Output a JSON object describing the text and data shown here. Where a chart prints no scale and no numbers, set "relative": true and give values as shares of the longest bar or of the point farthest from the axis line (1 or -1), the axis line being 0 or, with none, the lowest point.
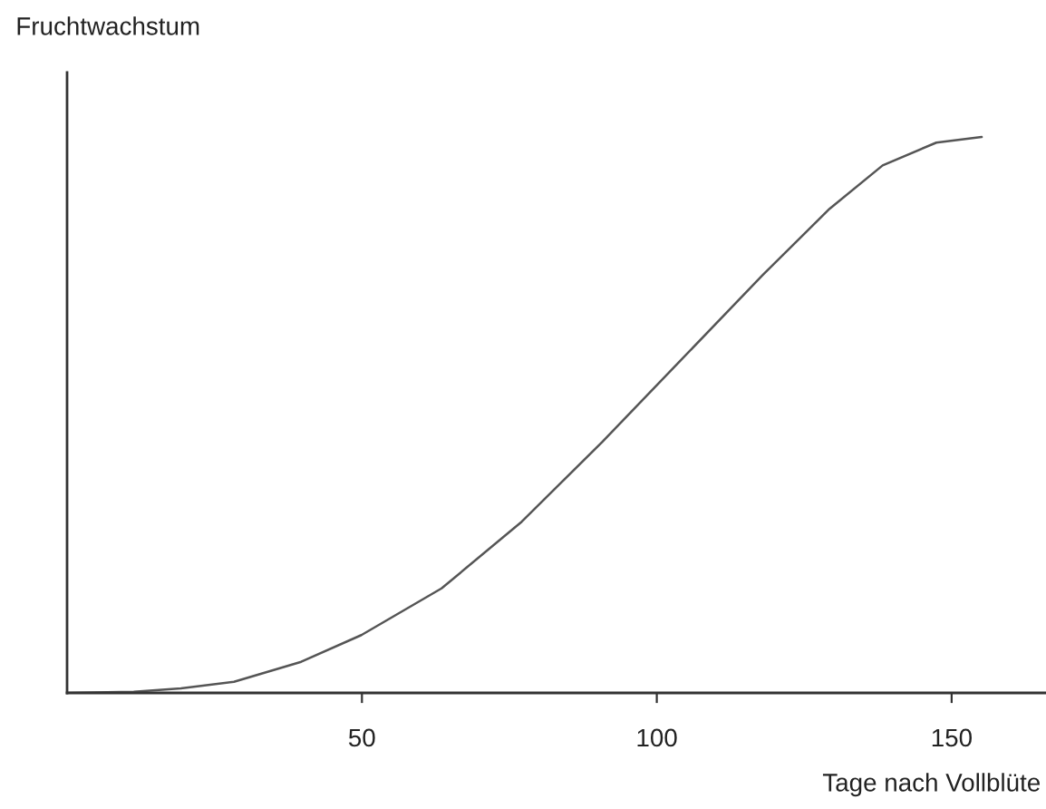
{
  "chart_data": {
    "type": "line",
    "relative": true,
    "ylabel": "Fruchtwachstum",
    "xlabel": "Tage nach Vollblüte",
    "xlim": [
      0,
      166
    ],
    "xticks": [
      50,
      100,
      150
    ],
    "grid": false,
    "legend": false,
    "marker": "none",
    "line_style": "solid",
    "series": [
      {
        "color": "#555555",
        "x": [
          0,
          11.3,
          19.3,
          28.3,
          39.7,
          49.9,
          63.5,
          77.1,
          90.7,
          104.3,
          117.9,
          129.3,
          138.3,
          147.4,
          155.1
        ],
        "values": [
          0,
          0.002,
          0.008,
          0.02,
          0.056,
          0.104,
          0.188,
          0.308,
          0.451,
          0.601,
          0.751,
          0.871,
          0.949,
          0.99,
          1.0
        ]
      }
    ]
  }
}
